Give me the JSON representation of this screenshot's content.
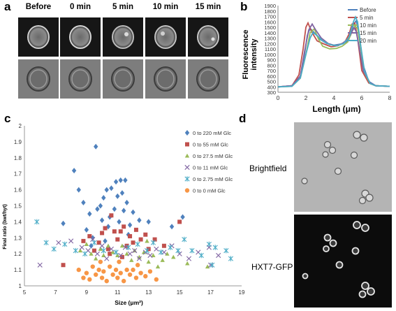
{
  "panels": {
    "a": {
      "letter": "a",
      "timepoints": [
        "Before",
        "0 min",
        "5 min",
        "10 min",
        "15 min"
      ]
    },
    "b": {
      "letter": "b"
    },
    "c": {
      "letter": "c"
    },
    "d": {
      "letter": "d",
      "labels": [
        "Brightfield",
        "HXT7-GFP"
      ]
    }
  },
  "chart_data": [
    {
      "id": "b",
      "type": "line",
      "xlabel": "Length (μm)",
      "ylabel": "Fluorescence intensity",
      "xlim": [
        0,
        8
      ],
      "ylim": [
        300,
        1900
      ],
      "xticks": [
        0,
        2,
        4,
        6,
        8
      ],
      "yticks": [
        300,
        400,
        500,
        600,
        700,
        800,
        900,
        1000,
        1100,
        1200,
        1300,
        1400,
        1500,
        1600,
        1700,
        1800,
        1900
      ],
      "legend_position": "top-right",
      "series": [
        {
          "name": "Before",
          "color": "#4f81bd",
          "x": [
            0,
            1.0,
            1.6,
            1.9,
            2.1,
            2.3,
            2.6,
            3.0,
            3.5,
            4.0,
            4.5,
            4.9,
            5.2,
            5.4,
            5.6,
            5.8,
            6.1,
            6.5,
            7.0,
            8.0
          ],
          "y": [
            400,
            420,
            600,
            1000,
            1350,
            1480,
            1400,
            1280,
            1200,
            1170,
            1190,
            1230,
            1350,
            1550,
            1620,
            1400,
            800,
            500,
            420,
            410
          ]
        },
        {
          "name": "5 min",
          "color": "#c0504d",
          "x": [
            0,
            1.0,
            1.5,
            1.8,
            2.0,
            2.15,
            2.4,
            2.8,
            3.3,
            3.8,
            4.3,
            4.8,
            5.1,
            5.3,
            5.5,
            5.7,
            6.0,
            6.5,
            7.0,
            8.0
          ],
          "y": [
            400,
            420,
            620,
            1100,
            1500,
            1580,
            1420,
            1250,
            1190,
            1140,
            1160,
            1230,
            1380,
            1560,
            1580,
            1300,
            700,
            470,
            420,
            410
          ]
        },
        {
          "name": "10 min",
          "color": "#9bbb59",
          "x": [
            0,
            1.0,
            1.6,
            2.0,
            2.3,
            2.6,
            2.9,
            3.2,
            3.7,
            4.2,
            4.6,
            5.0,
            5.3,
            5.5,
            5.7,
            5.9,
            6.2,
            6.6,
            7.0,
            8.0
          ],
          "y": [
            400,
            410,
            560,
            1000,
            1400,
            1470,
            1280,
            1150,
            1100,
            1110,
            1150,
            1230,
            1420,
            1520,
            1480,
            1150,
            650,
            460,
            420,
            410
          ]
        },
        {
          "name": "15 min",
          "color": "#8064a2",
          "x": [
            0,
            1.0,
            1.6,
            1.9,
            2.2,
            2.45,
            2.7,
            3.1,
            3.6,
            4.1,
            4.6,
            5.0,
            5.3,
            5.45,
            5.6,
            5.8,
            6.1,
            6.6,
            7.0,
            8.0
          ],
          "y": [
            400,
            420,
            600,
            1050,
            1450,
            1560,
            1450,
            1300,
            1200,
            1160,
            1200,
            1280,
            1420,
            1490,
            1420,
            1150,
            700,
            470,
            420,
            410
          ]
        },
        {
          "name": "20 min",
          "color": "#4bacc6",
          "x": [
            0,
            1.0,
            1.6,
            2.0,
            2.3,
            2.5,
            2.8,
            3.2,
            3.7,
            4.2,
            4.7,
            5.1,
            5.4,
            5.55,
            5.7,
            5.9,
            6.2,
            6.6,
            7.0,
            8.0
          ],
          "y": [
            400,
            410,
            560,
            1000,
            1300,
            1400,
            1350,
            1250,
            1180,
            1160,
            1200,
            1320,
            1600,
            1690,
            1600,
            1200,
            680,
            460,
            420,
            410
          ]
        }
      ]
    },
    {
      "id": "c",
      "type": "scatter",
      "xlabel": "Size (μm²)",
      "ylabel": "Final ratio (bwt/hyt)",
      "xlim": [
        5,
        19
      ],
      "ylim": [
        1,
        2
      ],
      "xticks": [
        5,
        7,
        9,
        11,
        13,
        15,
        17,
        19
      ],
      "yticks": [
        1,
        1.1,
        1.2,
        1.3,
        1.4,
        1.5,
        1.6,
        1.7,
        1.8,
        1.9,
        2
      ],
      "xtick_labels": [
        "5",
        "7",
        "9",
        "11",
        "13",
        "15",
        "17",
        "19"
      ],
      "ytick_labels": [
        "1",
        "1.1",
        "1.2",
        "1.3",
        "1.4",
        "1.5",
        "1.6",
        "1.7",
        "1.8",
        "1.9",
        "2"
      ],
      "legend_position": "top-right",
      "series": [
        {
          "name": "0 to 220 mM Glc",
          "marker": "diamond",
          "color": "#4f81bd",
          "points": [
            [
              7.5,
              1.39
            ],
            [
              8.2,
              1.72
            ],
            [
              8.5,
              1.6
            ],
            [
              8.8,
              1.52
            ],
            [
              9.0,
              1.35
            ],
            [
              9.2,
              1.45
            ],
            [
              9.4,
              1.3
            ],
            [
              9.6,
              1.87
            ],
            [
              9.7,
              1.48
            ],
            [
              9.9,
              1.5
            ],
            [
              10.0,
              1.41
            ],
            [
              10.1,
              1.55
            ],
            [
              10.3,
              1.6
            ],
            [
              10.4,
              1.37
            ],
            [
              10.5,
              1.43
            ],
            [
              10.6,
              1.61
            ],
            [
              10.8,
              1.48
            ],
            [
              10.9,
              1.65
            ],
            [
              11.0,
              1.56
            ],
            [
              11.1,
              1.4
            ],
            [
              11.2,
              1.66
            ],
            [
              11.3,
              1.58
            ],
            [
              11.4,
              1.47
            ],
            [
              11.5,
              1.66
            ],
            [
              11.6,
              1.52
            ],
            [
              11.8,
              1.38
            ],
            [
              12.0,
              1.46
            ],
            [
              12.4,
              1.41
            ],
            [
              13.0,
              1.4
            ],
            [
              14.5,
              1.37
            ],
            [
              15.2,
              1.43
            ],
            [
              9.3,
              1.25
            ],
            [
              10.2,
              1.28
            ],
            [
              11.7,
              1.32
            ]
          ]
        },
        {
          "name": "0 to 55 mM Glc",
          "marker": "square",
          "color": "#c0504d",
          "points": [
            [
              7.5,
              1.13
            ],
            [
              8.8,
              1.28
            ],
            [
              9.2,
              1.31
            ],
            [
              9.5,
              1.22
            ],
            [
              9.8,
              1.27
            ],
            [
              10.0,
              1.33
            ],
            [
              10.2,
              1.36
            ],
            [
              10.4,
              1.23
            ],
            [
              10.6,
              1.44
            ],
            [
              10.8,
              1.34
            ],
            [
              11.0,
              1.29
            ],
            [
              11.2,
              1.34
            ],
            [
              11.4,
              1.37
            ],
            [
              11.6,
              1.25
            ],
            [
              11.8,
              1.31
            ],
            [
              12.0,
              1.27
            ],
            [
              12.2,
              1.35
            ],
            [
              12.5,
              1.29
            ],
            [
              12.8,
              1.32
            ],
            [
              13.0,
              1.23
            ],
            [
              13.4,
              1.29
            ],
            [
              14.0,
              1.25
            ],
            [
              15.0,
              1.4
            ],
            [
              10.5,
              1.2
            ],
            [
              11.3,
              1.18
            ]
          ]
        },
        {
          "name": "0 to 27.5 mM Glc",
          "marker": "triangle",
          "color": "#9bbb59",
          "points": [
            [
              8.6,
              1.22
            ],
            [
              9.0,
              1.26
            ],
            [
              9.3,
              1.2
            ],
            [
              9.6,
              1.17
            ],
            [
              9.9,
              1.23
            ],
            [
              10.1,
              1.19
            ],
            [
              10.4,
              1.25
            ],
            [
              10.7,
              1.21
            ],
            [
              11.0,
              1.19
            ],
            [
              11.3,
              1.25
            ],
            [
              11.6,
              1.2
            ],
            [
              11.9,
              1.16
            ],
            [
              12.1,
              1.22
            ],
            [
              12.4,
              1.18
            ],
            [
              12.7,
              1.21
            ],
            [
              13.0,
              1.15
            ],
            [
              13.3,
              1.19
            ],
            [
              13.6,
              1.12
            ],
            [
              13.9,
              1.16
            ],
            [
              14.2,
              1.2
            ],
            [
              14.6,
              1.18
            ],
            [
              15.5,
              1.14
            ],
            [
              16.8,
              1.12
            ],
            [
              12.9,
              1.28
            ]
          ]
        },
        {
          "name": "0 to 11 mM Glc",
          "marker": "x",
          "color": "#8064a2",
          "points": [
            [
              6.0,
              1.13
            ],
            [
              7.2,
              1.27
            ],
            [
              8.0,
              1.28
            ],
            [
              8.7,
              1.24
            ],
            [
              9.1,
              1.22
            ],
            [
              9.4,
              1.29
            ],
            [
              9.7,
              1.2
            ],
            [
              10.0,
              1.25
            ],
            [
              10.3,
              1.17
            ],
            [
              10.6,
              1.23
            ],
            [
              10.9,
              1.21
            ],
            [
              11.2,
              1.19
            ],
            [
              11.5,
              1.24
            ],
            [
              11.8,
              1.2
            ],
            [
              12.1,
              1.22
            ],
            [
              12.4,
              1.17
            ],
            [
              12.8,
              1.21
            ],
            [
              13.1,
              1.19
            ],
            [
              13.5,
              1.23
            ],
            [
              14.0,
              1.21
            ],
            [
              14.5,
              1.25
            ],
            [
              15.0,
              1.2
            ],
            [
              15.6,
              1.17
            ],
            [
              16.2,
              1.21
            ],
            [
              17.0,
              1.13
            ],
            [
              17.5,
              1.19
            ],
            [
              16.9,
              1.24
            ]
          ]
        },
        {
          "name": "0 to 2.75 mM Glc",
          "marker": "star",
          "color": "#4bacc6",
          "points": [
            [
              5.8,
              1.4
            ],
            [
              6.4,
              1.27
            ],
            [
              6.9,
              1.23
            ],
            [
              7.6,
              1.26
            ],
            [
              8.3,
              1.22
            ],
            [
              8.9,
              1.2
            ],
            [
              9.5,
              1.27
            ],
            [
              10.1,
              1.22
            ],
            [
              10.9,
              1.21
            ],
            [
              11.7,
              1.24
            ],
            [
              12.3,
              1.26
            ],
            [
              12.9,
              1.22
            ],
            [
              13.3,
              1.27
            ],
            [
              13.8,
              1.21
            ],
            [
              14.4,
              1.24
            ],
            [
              14.9,
              1.22
            ],
            [
              15.3,
              1.29
            ],
            [
              15.8,
              1.22
            ],
            [
              16.4,
              1.19
            ],
            [
              16.9,
              1.26
            ],
            [
              17.3,
              1.24
            ],
            [
              18.0,
              1.22
            ],
            [
              18.3,
              1.17
            ],
            [
              17.1,
              1.13
            ]
          ]
        },
        {
          "name": "0 to 0 mM Glc",
          "marker": "circle",
          "color": "#f79646",
          "points": [
            [
              8.5,
              1.1
            ],
            [
              8.8,
              1.05
            ],
            [
              9.0,
              1.08
            ],
            [
              9.2,
              1.04
            ],
            [
              9.4,
              1.12
            ],
            [
              9.6,
              1.07
            ],
            [
              9.8,
              1.1
            ],
            [
              10.0,
              1.05
            ],
            [
              10.1,
              1.09
            ],
            [
              10.3,
              1.03
            ],
            [
              10.5,
              1.12
            ],
            [
              10.7,
              1.07
            ],
            [
              10.9,
              1.1
            ],
            [
              11.0,
              1.05
            ],
            [
              11.2,
              1.08
            ],
            [
              11.4,
              1.03
            ],
            [
              11.6,
              1.1
            ],
            [
              11.8,
              1.07
            ],
            [
              12.0,
              1.1
            ],
            [
              12.2,
              1.05
            ],
            [
              12.5,
              1.08
            ],
            [
              12.8,
              1.06
            ],
            [
              13.1,
              1.09
            ],
            [
              13.5,
              1.04
            ],
            [
              11.1,
              1.15
            ],
            [
              12.3,
              1.13
            ],
            [
              9.9,
              1.15
            ]
          ]
        }
      ]
    }
  ]
}
